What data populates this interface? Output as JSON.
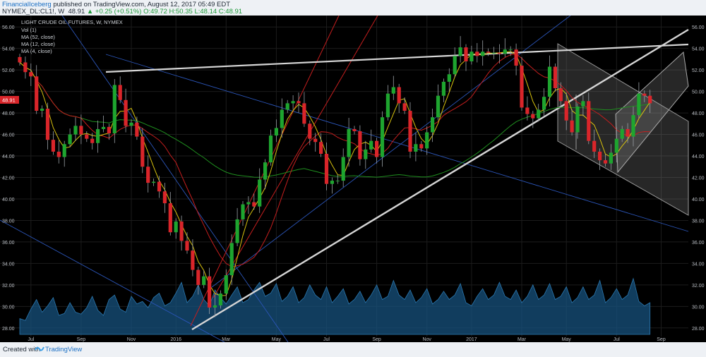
{
  "header": {
    "publisher": "FinancialIceberg",
    "published_text": "published on TradingView.com, August 12, 2017 05:49 EDT",
    "symbol": "NYMEX_DL:CL1!, W",
    "last": "48.91",
    "change": "+0.25 (+0.51%)",
    "open": "O:49.72",
    "high": "H:50.35",
    "low": "L:48.14",
    "close": "C:48.91"
  },
  "footer": {
    "created_with": "Created with",
    "brand": "TradingView"
  },
  "colors": {
    "bull": "#1ea52f",
    "bear": "#d9252a",
    "volume": "#17527e",
    "ma4": "#d8c20e",
    "ma12": "#c41e1e",
    "ma52": "#1f8f1f",
    "trend_white": "#d5d5d5",
    "channel_red": "#c41e1e",
    "channel_blue": "#2b55b8",
    "price_tag": "#d9252a"
  },
  "chart_data": {
    "type": "candlestick",
    "title": "LIGHT CRUDE OIL FUTURES, W, NYMEX",
    "legend": [
      "Vol (1)",
      "MA (52, close)",
      "MA (12, close)",
      "MA (4, close)"
    ],
    "y_ticks": [
      "56.00",
      "54.00",
      "52.00",
      "50.00",
      "48.00",
      "46.00",
      "44.00",
      "42.00",
      "40.00",
      "38.00",
      "36.00",
      "34.00",
      "32.00",
      "30.00",
      "28.00"
    ],
    "ylim": [
      27.2,
      56.8
    ],
    "x_ticks": [
      {
        "label": "Jul",
        "i": 2
      },
      {
        "label": "Sep",
        "i": 11
      },
      {
        "label": "Nov",
        "i": 20
      },
      {
        "label": "2016",
        "i": 28
      },
      {
        "label": "Mar",
        "i": 37
      },
      {
        "label": "May",
        "i": 46
      },
      {
        "label": "Jul",
        "i": 55
      },
      {
        "label": "Sep",
        "i": 64
      },
      {
        "label": "Nov",
        "i": 73
      },
      {
        "label": "2017",
        "i": 81
      },
      {
        "label": "Mar",
        "i": 90
      },
      {
        "label": "May",
        "i": 98
      },
      {
        "label": "Jul",
        "i": 107
      },
      {
        "label": "Sep",
        "i": 115
      }
    ],
    "last_price": "48.91",
    "closes": [
      52.7,
      51.8,
      51.4,
      48.2,
      48.4,
      45.5,
      44.4,
      43.9,
      45.1,
      46.0,
      46.8,
      46.0,
      45.6,
      45.2,
      46.5,
      46.7,
      46.1,
      50.6,
      49.2,
      46.8,
      47.1,
      45.8,
      43.0,
      41.5,
      41.6,
      40.7,
      39.6,
      36.9,
      37.9,
      36.1,
      35.2,
      33.4,
      32.0,
      32.8,
      29.9,
      30.1,
      31.2,
      32.9,
      35.9,
      38.1,
      39.5,
      39.7,
      39.3,
      41.8,
      43.4,
      45.9,
      46.6,
      48.3,
      48.9,
      49.1,
      48.9,
      47.0,
      45.6,
      45.3,
      44.2,
      41.4,
      41.7,
      41.7,
      43.9,
      46.5,
      46.3,
      43.7,
      44.6,
      45.4,
      43.9,
      47.6,
      49.8,
      50.4,
      48.9,
      48.2,
      44.4,
      45.1,
      44.7,
      46.2,
      47.6,
      49.6,
      50.9,
      51.6,
      53.3,
      54.1,
      52.8,
      53.7,
      53.3,
      53.7,
      53.6,
      53.6,
      53.5,
      53.9,
      53.9,
      52.4,
      48.5,
      47.9,
      47.5,
      48.3,
      49.5,
      52.3,
      50.3,
      49.1,
      47.3,
      46.2,
      48.6,
      49.1,
      45.4,
      44.4,
      43.6,
      43.3,
      44.3,
      45.6,
      46.5,
      45.8,
      47.8,
      49.8,
      49.6,
      48.9
    ],
    "volume_rel": [
      0.25,
      0.22,
      0.4,
      0.55,
      0.35,
      0.45,
      0.58,
      0.3,
      0.33,
      0.5,
      0.35,
      0.32,
      0.42,
      0.6,
      0.38,
      0.3,
      0.55,
      0.62,
      0.4,
      0.35,
      0.6,
      0.48,
      0.52,
      0.42,
      0.58,
      0.65,
      0.45,
      0.5,
      0.65,
      0.82,
      0.5,
      0.6,
      0.78,
      0.55,
      0.45,
      0.7,
      0.58,
      0.48,
      0.62,
      0.75,
      0.5,
      0.55,
      0.7,
      0.82,
      0.6,
      0.65,
      0.8,
      0.52,
      0.6,
      0.75,
      0.5,
      0.58,
      0.78,
      0.62,
      0.55,
      0.75,
      0.5,
      0.6,
      0.72,
      0.48,
      0.55,
      0.68,
      0.5,
      0.62,
      0.78,
      0.55,
      0.6,
      0.85,
      0.62,
      0.55,
      0.7,
      0.5,
      0.58,
      0.72,
      0.48,
      0.55,
      0.68,
      0.55,
      0.62,
      0.8,
      0.5,
      0.45,
      0.6,
      0.72,
      0.55,
      0.62,
      0.82,
      0.6,
      0.55,
      0.7,
      0.5,
      0.6,
      0.78,
      0.55,
      0.62,
      0.8,
      0.55,
      0.6,
      0.75,
      0.5,
      0.58,
      0.75,
      0.55,
      0.62,
      0.85,
      0.5,
      0.58,
      0.72,
      0.55,
      0.62,
      0.88,
      0.52,
      0.45,
      0.5
    ]
  }
}
